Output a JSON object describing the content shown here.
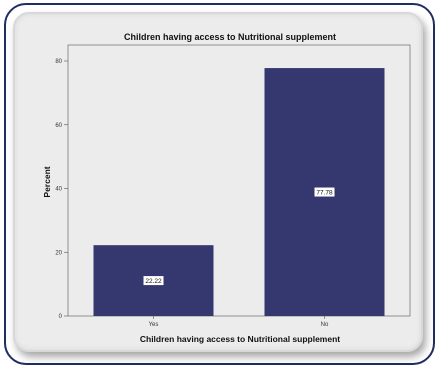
{
  "colors": {
    "bar": "#34386e",
    "plot_bg": "#ececec",
    "frame": "#1f2e5e"
  },
  "chart_data": {
    "type": "bar",
    "title": "Children having access to Nutritional supplement",
    "xlabel": "Children having access to Nutritional supplement",
    "ylabel": "Percent",
    "categories": [
      "Yes",
      "No"
    ],
    "values": [
      22.22,
      77.78
    ],
    "value_labels": [
      "22.22",
      "77.78"
    ],
    "ylim": [
      0,
      80
    ],
    "yticks": [
      0,
      20,
      40,
      60,
      80
    ],
    "grid": false,
    "legend": "none"
  }
}
